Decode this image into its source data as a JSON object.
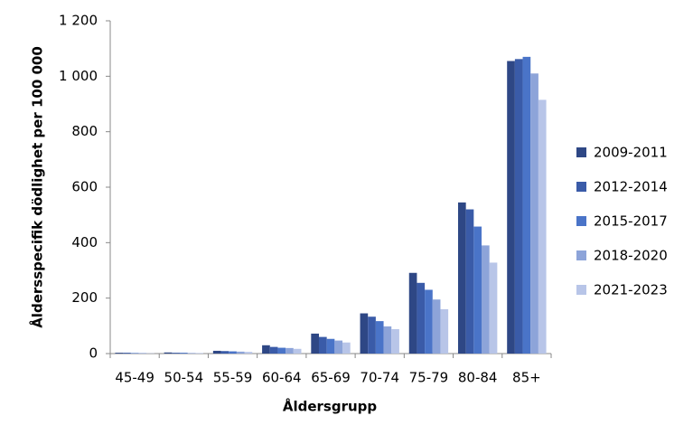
{
  "chart_data": {
    "type": "bar",
    "x_label": "Åldersgrupp",
    "y_label": "Åldersspecifik dödlighet per 100 000",
    "categories": [
      "45-49",
      "50-54",
      "55-59",
      "60-64",
      "65-69",
      "70-74",
      "75-79",
      "80-84",
      "85+"
    ],
    "series": [
      {
        "name": "2009-2011",
        "color": "#2e4785",
        "values": [
          3,
          4,
          10,
          30,
          72,
          145,
          291,
          545,
          1055
        ]
      },
      {
        "name": "2012-2014",
        "color": "#3a5ba8",
        "values": [
          3,
          3,
          9,
          24,
          60,
          133,
          255,
          520,
          1062
        ]
      },
      {
        "name": "2015-2017",
        "color": "#4a74c8",
        "values": [
          2,
          3,
          8,
          21,
          53,
          117,
          230,
          458,
          1070
        ]
      },
      {
        "name": "2018-2020",
        "color": "#8da4d9",
        "values": [
          2,
          2,
          7,
          20,
          47,
          98,
          195,
          390,
          1010
        ]
      },
      {
        "name": "2021-2023",
        "color": "#b8c5e8",
        "values": [
          1,
          2,
          6,
          17,
          40,
          88,
          160,
          328,
          915
        ]
      }
    ],
    "ylim": [
      0,
      1200
    ],
    "yticks": [
      0,
      200,
      400,
      600,
      800,
      {
        "value": 1000,
        "label": "1 000"
      },
      {
        "value": 1200,
        "label": "1 200"
      }
    ],
    "legend": "right"
  }
}
